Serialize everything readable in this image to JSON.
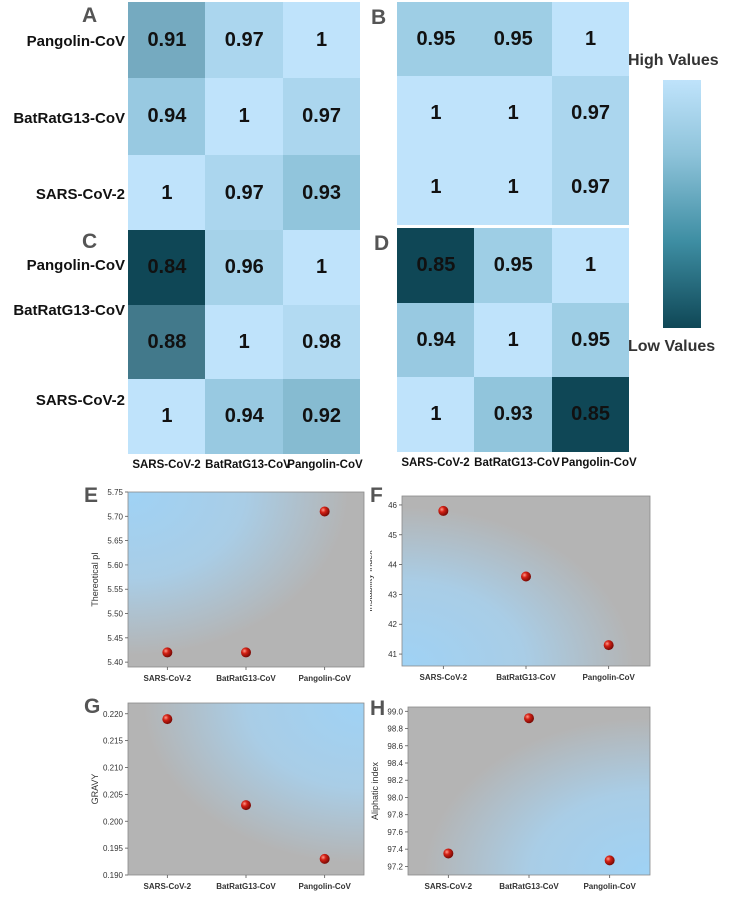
{
  "heatmap": {
    "row_labels": [
      "Pangolin-CoV",
      "BatRatG13-CoV",
      "SARS-CoV-2"
    ],
    "col_labels": [
      "SARS-CoV-2",
      "BatRatG13-CoV",
      "Pangolin-CoV"
    ],
    "legend_high": "High Values",
    "legend_low": "Low Values"
  },
  "chart_data": [
    {
      "panel": "A",
      "type": "heatmap",
      "rows": [
        "Pangolin-CoV",
        "BatRatG13-CoV",
        "SARS-CoV-2"
      ],
      "cols": [
        "SARS-CoV-2",
        "BatRatG13-CoV",
        "Pangolin-CoV"
      ],
      "values": [
        [
          "0.91",
          "0.97",
          "1"
        ],
        [
          "0.94",
          "1",
          "0.97"
        ],
        [
          "1",
          "0.97",
          "0.93"
        ]
      ]
    },
    {
      "panel": "B",
      "type": "heatmap",
      "rows": [
        "Pangolin-CoV",
        "BatRatG13-CoV",
        "SARS-CoV-2"
      ],
      "cols": [
        "SARS-CoV-2",
        "BatRatG13-CoV",
        "Pangolin-CoV"
      ],
      "values": [
        [
          "0.95",
          "0.95",
          "1"
        ],
        [
          "1",
          "1",
          "0.97"
        ],
        [
          "1",
          "1",
          "0.97"
        ]
      ]
    },
    {
      "panel": "C",
      "type": "heatmap",
      "rows": [
        "Pangolin-CoV",
        "BatRatG13-CoV",
        "SARS-CoV-2"
      ],
      "cols": [
        "SARS-CoV-2",
        "BatRatG13-CoV",
        "Pangolin-CoV"
      ],
      "values": [
        [
          "0.84",
          "0.96",
          "1"
        ],
        [
          "0.88",
          "1",
          "0.98"
        ],
        [
          "1",
          "0.94",
          "0.92"
        ]
      ]
    },
    {
      "panel": "D",
      "type": "heatmap",
      "rows": [
        "Pangolin-CoV",
        "BatRatG13-CoV",
        "SARS-CoV-2"
      ],
      "cols": [
        "SARS-CoV-2",
        "BatRatG13-CoV",
        "Pangolin-CoV"
      ],
      "values": [
        [
          "0.85",
          "0.95",
          "1"
        ],
        [
          "0.94",
          "1",
          "0.95"
        ],
        [
          "1",
          "0.93",
          "0.85"
        ]
      ]
    },
    {
      "panel": "E",
      "type": "scatter",
      "ylabel": "Thereotical pI",
      "categories": [
        "SARS-CoV-2",
        "BatRatG13-CoV",
        "Pangolin-CoV"
      ],
      "values": [
        5.42,
        5.42,
        5.71
      ],
      "ylim": [
        5.39,
        5.75
      ],
      "yticks": [
        "5.40",
        "5.45",
        "5.50",
        "5.55",
        "5.60",
        "5.65",
        "5.70",
        "5.75"
      ]
    },
    {
      "panel": "F",
      "type": "scatter",
      "ylabel": "Instability index",
      "categories": [
        "SARS-CoV-2",
        "BatRatG13-CoV",
        "Pangolin-CoV"
      ],
      "values": [
        45.8,
        43.6,
        41.3
      ],
      "ylim": [
        40.6,
        46.3
      ],
      "yticks": [
        "41",
        "42",
        "43",
        "44",
        "45",
        "46"
      ]
    },
    {
      "panel": "G",
      "type": "scatter",
      "ylabel": "GRAVY",
      "categories": [
        "SARS-CoV-2",
        "BatRatG13-CoV",
        "Pangolin-CoV"
      ],
      "values": [
        0.219,
        0.203,
        0.193
      ],
      "ylim": [
        0.19,
        0.222
      ],
      "yticks": [
        "0.190",
        "0.195",
        "0.200",
        "0.205",
        "0.210",
        "0.215",
        "0.220"
      ]
    },
    {
      "panel": "H",
      "type": "scatter",
      "ylabel": "Aliphatic index",
      "categories": [
        "SARS-CoV-2",
        "BatRatG13-CoV",
        "Pangolin-CoV"
      ],
      "values": [
        97.35,
        98.92,
        97.27
      ],
      "ylim": [
        97.1,
        99.05
      ],
      "yticks": [
        "97.2",
        "97.4",
        "97.6",
        "97.8",
        "98.0",
        "98.2",
        "98.4",
        "98.6",
        "98.8",
        "99.0"
      ]
    }
  ],
  "colors": {
    "heat_high": "#bfe3fb",
    "heat_low": "#0f4756",
    "plot_gray": "#b4b4b4",
    "plot_blue": "#9fd2f5",
    "point": "#d32014"
  }
}
